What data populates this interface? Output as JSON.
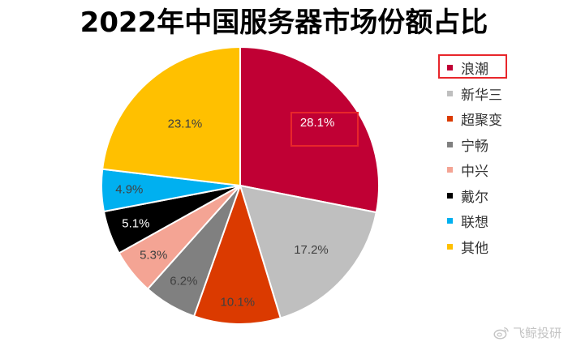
{
  "chart_data": {
    "type": "pie",
    "title": "2022年中国服务器市场份额占比",
    "categories": [
      "浪潮",
      "新华三",
      "超聚变",
      "宁畅",
      "中兴",
      "戴尔",
      "联想",
      "其他"
    ],
    "values": [
      28.1,
      17.2,
      10.1,
      6.2,
      5.3,
      5.1,
      4.9,
      23.1
    ],
    "labels": [
      "28.1%",
      "17.2%",
      "10.1%",
      "6.2%",
      "5.3%",
      "5.1%",
      "4.9%",
      "23.1%"
    ],
    "colors": [
      "#c00034",
      "#bfbfbf",
      "#db3a00",
      "#808080",
      "#f4a494",
      "#000000",
      "#00b0f0",
      "#ffc000"
    ],
    "label_colors": [
      "#ffffff",
      "#404040",
      "#404040",
      "#404040",
      "#404040",
      "#ffffff",
      "#404040",
      "#404040"
    ],
    "legend_position": "right",
    "highlighted": [
      "浪潮"
    ]
  },
  "watermark": {
    "text": "飞鲸投研",
    "icon": "weibo-icon"
  }
}
